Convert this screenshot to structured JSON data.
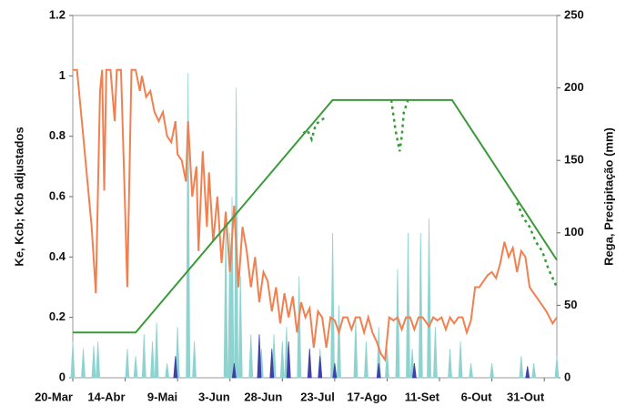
{
  "chart_data": {
    "type": "line",
    "y_label": "Ke, Kcb; Kcb adjustados",
    "y2_label": "Rega, Precipitação (mm)",
    "xlim": [
      0,
      231
    ],
    "xticks": [
      {
        "value": 0,
        "label": "20-Mar"
      },
      {
        "value": 25,
        "label": "14-Abr"
      },
      {
        "value": 50,
        "label": "9-Mai"
      },
      {
        "value": 75,
        "label": "3-Jun"
      },
      {
        "value": 100,
        "label": "28-Jun"
      },
      {
        "value": 125,
        "label": "23-Jul"
      },
      {
        "value": 150,
        "label": "17-Ago"
      },
      {
        "value": 175,
        "label": "11-Set"
      },
      {
        "value": 200,
        "label": "6-Out"
      },
      {
        "value": 225,
        "label": "31-Out"
      }
    ],
    "ylim": [
      0,
      1.2
    ],
    "yticks": [
      0,
      0.2,
      0.4,
      0.6,
      0.8,
      1,
      1.2
    ],
    "y2lim": [
      0,
      250
    ],
    "y2ticks": [
      0,
      50,
      100,
      150,
      200,
      250
    ],
    "series": [
      {
        "name": "Precipitação",
        "type": "spike",
        "axis": "y2",
        "color": "#8fd3d0",
        "x": [
          0,
          5,
          10,
          12,
          26,
          30,
          34,
          38,
          40,
          45,
          50,
          55,
          58,
          73,
          75,
          76,
          78,
          80,
          85,
          90,
          96,
          100,
          102,
          108,
          113,
          118,
          124,
          127,
          135,
          140,
          146,
          150,
          155,
          160,
          162,
          166,
          170,
          173,
          180,
          185,
          190,
          200,
          214,
          220,
          231
        ],
        "values": [
          25,
          20,
          22,
          25,
          20,
          15,
          30,
          25,
          38,
          10,
          35,
          210,
          25,
          105,
          100,
          125,
          200,
          70,
          30,
          20,
          30,
          25,
          35,
          70,
          20,
          20,
          100,
          50,
          40,
          25,
          35,
          20,
          75,
          100,
          20,
          100,
          110,
          35,
          20,
          25,
          10,
          10,
          15,
          10,
          15
        ]
      },
      {
        "name": "Rega",
        "type": "spike",
        "axis": "y2",
        "color": "#4040a8",
        "x": [
          49,
          77,
          89,
          95,
          103,
          113,
          118,
          125,
          146,
          163,
          217
        ],
        "values": [
          15,
          10,
          30,
          20,
          25,
          20,
          15,
          10,
          10,
          10,
          8
        ]
      },
      {
        "name": "Ke",
        "type": "line",
        "color": "#f08050",
        "dash": false,
        "x": [
          0,
          2,
          5,
          9,
          11,
          13,
          14,
          15,
          16,
          18,
          20,
          21,
          23,
          25,
          26,
          28,
          30,
          32,
          33,
          35,
          37,
          39,
          41,
          43,
          45,
          47,
          49,
          50,
          52,
          54,
          55,
          57,
          59,
          60,
          62,
          64,
          65,
          67,
          69,
          71,
          73,
          75,
          77,
          79,
          81,
          83,
          85,
          87,
          89,
          91,
          93,
          95,
          97,
          99,
          101,
          103,
          105,
          107,
          109,
          111,
          113,
          115,
          117,
          119,
          121,
          123,
          125,
          127,
          129,
          131,
          133,
          135,
          137,
          139,
          141,
          143,
          145,
          147,
          149,
          151,
          153,
          155,
          157,
          159,
          161,
          163,
          165,
          167,
          170,
          172,
          174,
          176,
          178,
          180,
          182,
          184,
          186,
          188,
          190,
          192,
          194,
          196,
          198,
          200,
          202,
          204,
          206,
          208,
          210,
          212,
          214,
          216,
          218,
          220,
          223,
          226,
          229,
          231
        ],
        "values": [
          1.02,
          1.02,
          0.8,
          0.5,
          0.28,
          0.95,
          1.02,
          0.62,
          1.02,
          1.02,
          0.85,
          1.02,
          1.02,
          0.55,
          0.3,
          1.02,
          1.02,
          0.95,
          1,
          0.93,
          0.95,
          0.88,
          0.85,
          0.88,
          0.8,
          0.78,
          0.85,
          0.74,
          0.72,
          0.65,
          0.85,
          0.6,
          0.7,
          0.42,
          0.75,
          0.5,
          0.68,
          0.45,
          0.6,
          0.38,
          0.55,
          0.35,
          0.57,
          0.3,
          0.5,
          0.42,
          0.3,
          0.4,
          0.25,
          0.35,
          0.32,
          0.22,
          0.3,
          0.18,
          0.28,
          0.2,
          0.27,
          0.15,
          0.25,
          0.2,
          0.23,
          0.1,
          0.22,
          0.2,
          0.1,
          0.2,
          0.19,
          0.15,
          0.2,
          0.2,
          0.16,
          0.2,
          0.2,
          0.15,
          0.2,
          0.15,
          0.12,
          0.08,
          0.06,
          0.2,
          0.19,
          0.2,
          0.16,
          0.2,
          0.2,
          0.16,
          0.2,
          0.2,
          0.17,
          0.2,
          0.19,
          0.2,
          0.16,
          0.2,
          0.18,
          0.2,
          0.2,
          0.15,
          0.19,
          0.3,
          0.3,
          0.32,
          0.34,
          0.35,
          0.33,
          0.38,
          0.45,
          0.4,
          0.43,
          0.35,
          0.42,
          0.4,
          0.3,
          0.28,
          0.25,
          0.22,
          0.18,
          0.2
        ]
      },
      {
        "name": "Kcb",
        "type": "line",
        "color": "#3a9a3a",
        "dash": false,
        "x": [
          0,
          30,
          124,
          181,
          231
        ],
        "values": [
          0.15,
          0.15,
          0.92,
          0.92,
          0.39
        ]
      },
      {
        "name": "Kcb adjustado",
        "type": "line",
        "color": "#3a9a3a",
        "dash": true,
        "x": [
          110,
          112,
          114,
          116,
          118,
          120,
          null,
          152,
          154,
          156,
          157,
          158,
          160,
          null,
          212,
          215,
          218,
          221,
          224,
          227,
          231
        ],
        "values": [
          0.81,
          0.82,
          0.79,
          0.84,
          0.85,
          0.86,
          null,
          0.92,
          0.82,
          0.75,
          0.8,
          0.88,
          0.92,
          null,
          0.58,
          0.53,
          0.5,
          0.45,
          0.42,
          0.36,
          0.3
        ]
      }
    ]
  }
}
